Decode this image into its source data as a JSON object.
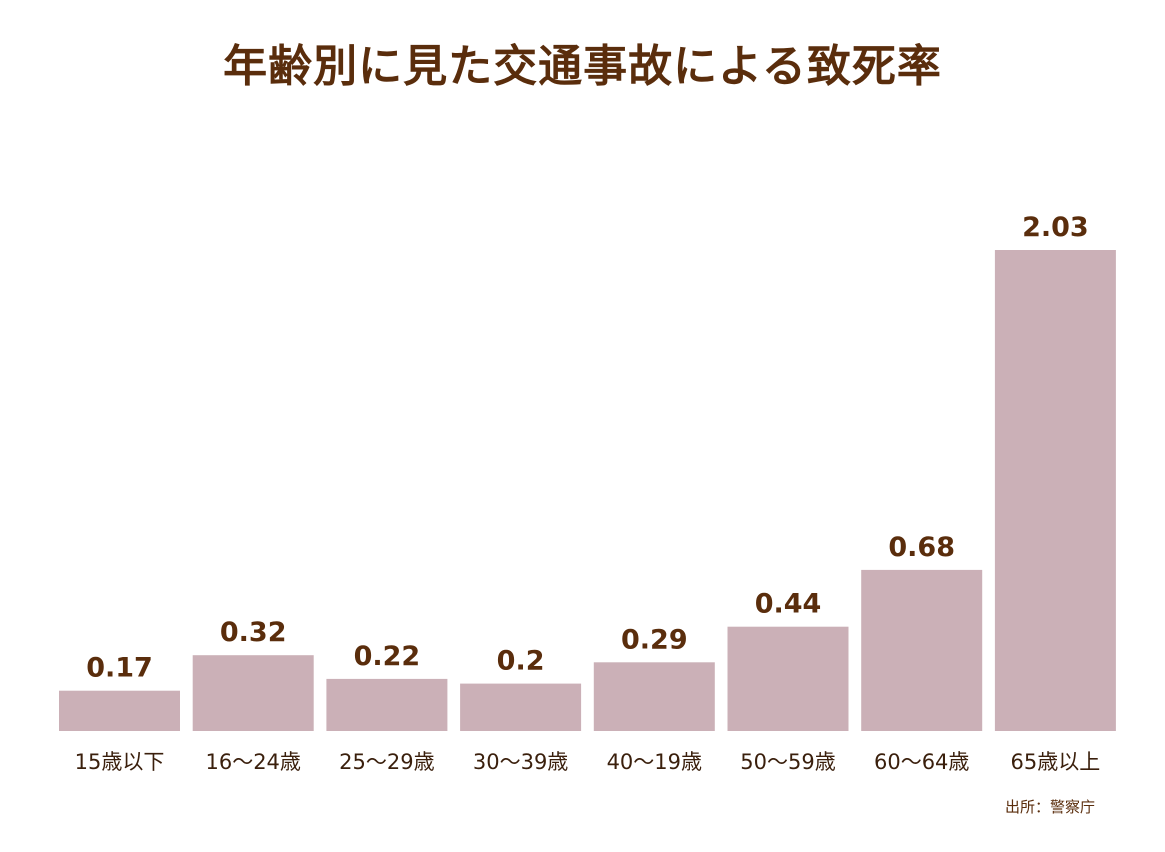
{
  "chart_data": {
    "type": "bar",
    "title": "年齢別に見た交通事故による致死率",
    "categories": [
      "15歳以下",
      "16〜24歳",
      "25〜29歳",
      "30〜39歳",
      "40〜19歳",
      "50〜59歳",
      "60〜64歳",
      "65歳以上"
    ],
    "values": [
      0.17,
      0.32,
      0.22,
      0.2,
      0.29,
      0.44,
      0.68,
      2.03
    ],
    "value_labels": [
      "0.17",
      "0.32",
      "0.22",
      "0.2",
      "0.29",
      "0.44",
      "0.68",
      "2.03"
    ],
    "xlabel": "",
    "ylabel": "",
    "ylim": [
      0,
      2.03
    ],
    "grid": false,
    "legend": "none",
    "colors": {
      "bar": "#cbb0b7",
      "value_text": "#5a2d0c",
      "category_text": "#3a1f0c",
      "title": "#5a2d0c"
    }
  },
  "source": "出所：警察庁"
}
